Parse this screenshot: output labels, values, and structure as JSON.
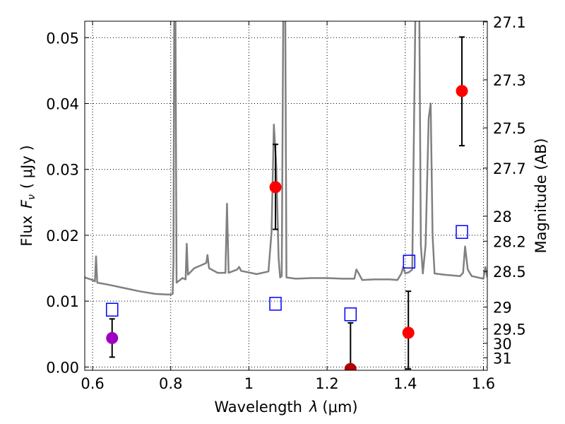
{
  "chart_data": {
    "type": "scatter",
    "xlabel_prefix": "Wavelength",
    "xlabel_symbol": "λ",
    "xlabel_unit": "(μm)",
    "ylabel_prefix": "Flux",
    "ylabel_symbol": "F",
    "ylabel_subscript": "ν",
    "ylabel_unit": "( μJy )",
    "y2label": "Magnitude (AB)",
    "xlim": [
      0.58,
      1.61
    ],
    "ylim": [
      -0.0005,
      0.0525
    ],
    "grid": true,
    "xticks": [
      {
        "value": 0.6,
        "label": "0.6"
      },
      {
        "value": 0.8,
        "label": "0.8"
      },
      {
        "value": 1.0,
        "label": "1"
      },
      {
        "value": 1.2,
        "label": "1.2"
      },
      {
        "value": 1.4,
        "label": "1.4"
      },
      {
        "value": 1.6,
        "label": "1.6"
      }
    ],
    "yticks": [
      {
        "value": 0.0,
        "label": "0.00"
      },
      {
        "value": 0.01,
        "label": "0.01"
      },
      {
        "value": 0.02,
        "label": "0.02"
      },
      {
        "value": 0.03,
        "label": "0.03"
      },
      {
        "value": 0.04,
        "label": "0.04"
      },
      {
        "value": 0.05,
        "label": "0.05"
      }
    ],
    "magnitude_ticks": [
      {
        "label": "27.1",
        "flux": 0.0524
      },
      {
        "label": "27.3",
        "flux": 0.0436
      },
      {
        "label": "27.5",
        "flux": 0.0363
      },
      {
        "label": "27.7",
        "flux": 0.0302
      },
      {
        "label": "28",
        "flux": 0.0229
      },
      {
        "label": "28.2",
        "flux": 0.0191
      },
      {
        "label": "28.5",
        "flux": 0.0145
      },
      {
        "label": "29",
        "flux": 0.0091
      },
      {
        "label": "29.5",
        "flux": 0.0058
      },
      {
        "label": "30",
        "flux": 0.0036
      },
      {
        "label": "31",
        "flux": 0.0014
      }
    ],
    "colors": {
      "spectrum": "#808080",
      "purple_point": "#a000c0",
      "red_point": "#ff0000",
      "dark_red_point": "#b00000",
      "model_box": "#0000ff",
      "errorbar": "#000000"
    },
    "spectrum": [
      [
        0.58,
        0.0136
      ],
      [
        0.6,
        0.0132
      ],
      [
        0.606,
        0.013
      ],
      [
        0.609,
        0.0168
      ],
      [
        0.612,
        0.0128
      ],
      [
        0.64,
        0.0125
      ],
      [
        0.68,
        0.012
      ],
      [
        0.72,
        0.0115
      ],
      [
        0.76,
        0.0111
      ],
      [
        0.79,
        0.011
      ],
      [
        0.8,
        0.011
      ],
      [
        0.805,
        0.0111
      ],
      [
        0.807,
        0.016
      ],
      [
        0.809,
        0.054
      ],
      [
        0.812,
        0.054
      ],
      [
        0.815,
        0.0128
      ],
      [
        0.83,
        0.0135
      ],
      [
        0.838,
        0.0133
      ],
      [
        0.841,
        0.0187
      ],
      [
        0.844,
        0.014
      ],
      [
        0.86,
        0.015
      ],
      [
        0.88,
        0.0155
      ],
      [
        0.891,
        0.0158
      ],
      [
        0.894,
        0.017
      ],
      [
        0.898,
        0.015
      ],
      [
        0.92,
        0.0143
      ],
      [
        0.94,
        0.0143
      ],
      [
        0.944,
        0.0248
      ],
      [
        0.948,
        0.0143
      ],
      [
        0.97,
        0.0148
      ],
      [
        0.975,
        0.0152
      ],
      [
        0.98,
        0.0146
      ],
      [
        1.02,
        0.0141
      ],
      [
        1.05,
        0.0145
      ],
      [
        1.058,
        0.0205
      ],
      [
        1.064,
        0.0368
      ],
      [
        1.07,
        0.0305
      ],
      [
        1.076,
        0.0165
      ],
      [
        1.08,
        0.0136
      ],
      [
        1.084,
        0.0138
      ],
      [
        1.088,
        0.054
      ],
      [
        1.093,
        0.054
      ],
      [
        1.096,
        0.0136
      ],
      [
        1.12,
        0.0134
      ],
      [
        1.16,
        0.0135
      ],
      [
        1.2,
        0.0135
      ],
      [
        1.24,
        0.0134
      ],
      [
        1.27,
        0.0134
      ],
      [
        1.275,
        0.0148
      ],
      [
        1.28,
        0.0143
      ],
      [
        1.29,
        0.0132
      ],
      [
        1.32,
        0.0133
      ],
      [
        1.36,
        0.0133
      ],
      [
        1.38,
        0.0132
      ],
      [
        1.39,
        0.0142
      ],
      [
        1.395,
        0.0152
      ],
      [
        1.4,
        0.0142
      ],
      [
        1.41,
        0.0144
      ],
      [
        1.418,
        0.0148
      ],
      [
        1.426,
        0.054
      ],
      [
        1.436,
        0.054
      ],
      [
        1.44,
        0.0185
      ],
      [
        1.445,
        0.0142
      ],
      [
        1.452,
        0.0185
      ],
      [
        1.46,
        0.0378
      ],
      [
        1.465,
        0.04
      ],
      [
        1.47,
        0.02
      ],
      [
        1.475,
        0.0142
      ],
      [
        1.5,
        0.014
      ],
      [
        1.54,
        0.0138
      ],
      [
        1.548,
        0.0143
      ],
      [
        1.553,
        0.0183
      ],
      [
        1.56,
        0.0148
      ],
      [
        1.57,
        0.0138
      ],
      [
        1.6,
        0.0134
      ],
      [
        1.605,
        0.0152
      ],
      [
        1.61,
        0.0136
      ]
    ],
    "observed_points": [
      {
        "x": 0.65,
        "y": 0.0044,
        "yerr_low": 0.0015,
        "yerr_high": 0.0073,
        "color": "#a000c0"
      },
      {
        "x": 1.068,
        "y": 0.0273,
        "yerr_low": 0.0209,
        "yerr_high": 0.0338,
        "color": "#ff0000"
      },
      {
        "x": 1.26,
        "y": -0.0003,
        "yerr_low": -0.0003,
        "yerr_high": 0.0067,
        "color": "#b00000"
      },
      {
        "x": 1.408,
        "y": 0.0052,
        "yerr_low": -0.0003,
        "yerr_high": 0.0115,
        "color": "#ff0000"
      },
      {
        "x": 1.545,
        "y": 0.0419,
        "yerr_low": 0.0336,
        "yerr_high": 0.0501,
        "color": "#ff0000"
      }
    ],
    "model_points": [
      {
        "x": 0.65,
        "y": 0.0087
      },
      {
        "x": 1.068,
        "y": 0.0096
      },
      {
        "x": 1.26,
        "y": 0.008
      },
      {
        "x": 1.41,
        "y": 0.016
      },
      {
        "x": 1.545,
        "y": 0.0205
      }
    ]
  }
}
